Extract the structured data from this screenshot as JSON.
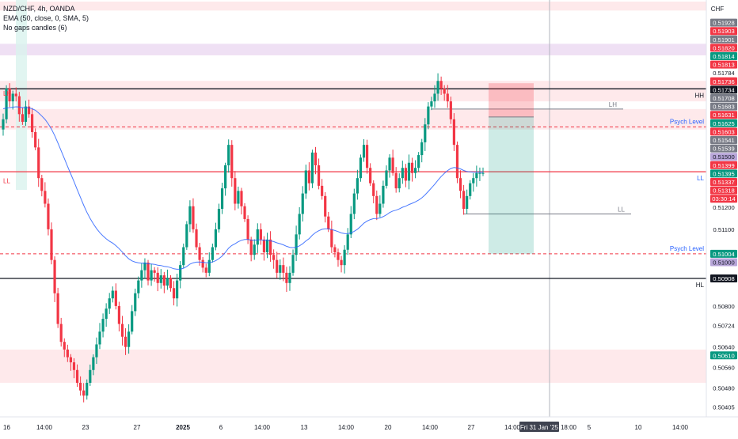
{
  "header": {
    "symbol_line": "NZD/CHF, 4h, OANDA",
    "ema_line": "EMA (50, close, 0, SMA, 5)",
    "gaps_line": "No gaps candles (6)"
  },
  "chart_data": {
    "type": "candlestick",
    "currency_label": "CHF",
    "y_range": [
      0.5037,
      0.5199
    ],
    "x_range": [
      0,
      932
    ],
    "price_ticks": [
      "0.51928",
      "0.51903",
      "0.51901",
      "0.51820",
      "0.51814",
      "0.51813",
      "0.51784",
      "0.51736",
      "0.51734",
      "0.51708",
      "0.51683",
      "0.51631",
      "0.51625",
      "0.51603",
      "0.51541",
      "0.51539",
      "0.51500",
      "0.51399",
      "0.51395",
      "0.51337",
      "0.51318",
      "03:30:14",
      "0.51200",
      "0.51100",
      "0.51004",
      "0.51000",
      "0.50908",
      "0.50800",
      "0.50724",
      "0.50640",
      "0.50610",
      "0.50560",
      "0.50480",
      "0.50405"
    ],
    "price_tick_values": [
      0.51928,
      0.51903,
      0.51901,
      0.5182,
      0.51814,
      0.51813,
      0.51784,
      0.51736,
      0.51734,
      0.51708,
      0.51683,
      0.51631,
      0.51625,
      0.51603,
      0.51541,
      0.51539,
      0.515,
      0.51399,
      0.51395,
      0.51337,
      0.51318,
      0.5129,
      0.512,
      0.511,
      0.51004,
      0.51,
      0.50908,
      0.508,
      0.50724,
      0.5064,
      0.5061,
      0.5056,
      0.5048,
      0.50405
    ],
    "price_tick_styles": [
      {
        "bg": "#787b86",
        "fg": "#ffffff"
      },
      {
        "bg": "#f23645",
        "fg": "#ffffff"
      },
      {
        "bg": "#787b86",
        "fg": "#ffffff"
      },
      {
        "bg": "#f23645",
        "fg": "#ffffff"
      },
      {
        "bg": "#089981",
        "fg": "#ffffff"
      },
      {
        "bg": "#f23645",
        "fg": "#ffffff"
      },
      {
        "bg": "#ffffff",
        "fg": "#131722"
      },
      {
        "bg": "#f23645",
        "fg": "#ffffff"
      },
      {
        "bg": "#131722",
        "fg": "#ffffff"
      },
      {
        "bg": "#787b86",
        "fg": "#ffffff"
      },
      {
        "bg": "#787b86",
        "fg": "#ffffff"
      },
      {
        "bg": "#f23645",
        "fg": "#ffffff"
      },
      {
        "bg": "#089981",
        "fg": "#ffffff"
      },
      {
        "bg": "#f23645",
        "fg": "#ffffff"
      },
      {
        "bg": "#787b86",
        "fg": "#ffffff"
      },
      {
        "bg": "#787b86",
        "fg": "#ffffff"
      },
      {
        "bg": "#b8a6d9",
        "fg": "#131722"
      },
      {
        "bg": "#f23645",
        "fg": "#ffffff"
      },
      {
        "bg": "#089981",
        "fg": "#ffffff"
      },
      {
        "bg": "#f23645",
        "fg": "#ffffff"
      },
      {
        "bg": "#f23645",
        "fg": "#ffffff"
      },
      {
        "bg": "#f23645",
        "fg": "#ffffff"
      },
      {
        "bg": "none",
        "fg": "#131722"
      },
      {
        "bg": "none",
        "fg": "#131722"
      },
      {
        "bg": "#089981",
        "fg": "#ffffff"
      },
      {
        "bg": "#b8a6d9",
        "fg": "#131722"
      },
      {
        "bg": "#131722",
        "fg": "#ffffff"
      },
      {
        "bg": "none",
        "fg": "#131722"
      },
      {
        "bg": "none",
        "fg": "#131722"
      },
      {
        "bg": "none",
        "fg": "#131722"
      },
      {
        "bg": "#089981",
        "fg": "#ffffff"
      },
      {
        "bg": "none",
        "fg": "#131722"
      },
      {
        "bg": "none",
        "fg": "#131722"
      },
      {
        "bg": "none",
        "fg": "#131722"
      }
    ],
    "x_ticks": [
      "16",
      "14:00",
      "23",
      "27",
      "2025",
      "6",
      "14:00",
      "13",
      "14:00",
      "20",
      "14:00",
      "27",
      "14:00",
      "18:00",
      "5",
      "10",
      "14:00"
    ],
    "x_tick_positions": [
      4,
      56,
      108,
      173,
      231,
      279,
      331,
      384,
      437,
      490,
      543,
      595,
      647,
      718,
      744,
      806,
      859
    ],
    "cursor_date_label": "Fri 31 Jan '25",
    "horizontal_levels": [
      {
        "label": "HH",
        "price": 0.51649,
        "color": "#131722",
        "style": "solid"
      },
      {
        "label": "HL",
        "price": 0.50908,
        "color": "#131722",
        "style": "solid"
      },
      {
        "label": "LL",
        "price": 0.51325,
        "color": "#f23645",
        "style": "solid"
      },
      {
        "label": "Psych Level",
        "price": 0.515,
        "color": "#f23645",
        "style": "dashed"
      },
      {
        "label": "Psych Level",
        "price": 0.51004,
        "color": "#f23645",
        "style": "dashed"
      }
    ],
    "left_labels": [
      {
        "label": "LH",
        "price": 0.51631
      },
      {
        "label": "LL",
        "price": 0.5129
      }
    ],
    "short_lines": [
      {
        "label": "LH",
        "price": 0.5157,
        "x_from": 545,
        "x_to": 787
      },
      {
        "label": "LL",
        "price": 0.5116,
        "x_from": 585,
        "x_to": 797
      }
    ],
    "zones": [
      {
        "type": "supply",
        "top": 0.5199,
        "bottom": 0.51955,
        "color": "#fde2e4"
      },
      {
        "type": "purple",
        "top": 0.51825,
        "bottom": 0.5178,
        "color": "#e9d5f0"
      },
      {
        "type": "supply",
        "top": 0.5168,
        "bottom": 0.516,
        "color": "#fde2e4"
      },
      {
        "type": "supply",
        "top": 0.5157,
        "bottom": 0.5149,
        "color": "#fde2e4"
      },
      {
        "type": "demand",
        "top": 0.5063,
        "bottom": 0.505,
        "color": "#fde2e4"
      }
    ],
    "position": {
      "entry": 0.51539,
      "stop": 0.51603,
      "target": 0.51004
    },
    "ema_period": 50,
    "candles": {
      "count": 150,
      "closes": [
        0.5153,
        0.5165,
        0.516,
        0.5163,
        0.5162,
        0.5155,
        0.5152,
        0.5158,
        0.5155,
        0.5148,
        0.5142,
        0.513,
        0.5125,
        0.512,
        0.511,
        0.5098,
        0.5085,
        0.5073,
        0.5066,
        0.5063,
        0.506,
        0.5058,
        0.5055,
        0.505,
        0.5047,
        0.5045,
        0.505,
        0.5055,
        0.506,
        0.5065,
        0.507,
        0.5075,
        0.5079,
        0.5083,
        0.5086,
        0.508,
        0.5073,
        0.5068,
        0.5064,
        0.507,
        0.5078,
        0.5085,
        0.509,
        0.5094,
        0.5097,
        0.509,
        0.5094,
        0.5093,
        0.5089,
        0.5092,
        0.5088,
        0.5091,
        0.5087,
        0.5083,
        0.509,
        0.5096,
        0.5103,
        0.5112,
        0.5119,
        0.511,
        0.5103,
        0.5098,
        0.5095,
        0.5093,
        0.5098,
        0.5103,
        0.511,
        0.5118,
        0.5126,
        0.5135,
        0.5143,
        0.513,
        0.512,
        0.5125,
        0.5119,
        0.5114,
        0.5106,
        0.51,
        0.5104,
        0.511,
        0.5106,
        0.5101,
        0.5106,
        0.51,
        0.5098,
        0.5093,
        0.5096,
        0.5093,
        0.5089,
        0.5093,
        0.51,
        0.5108,
        0.5116,
        0.5124,
        0.5133,
        0.5128,
        0.514,
        0.5135,
        0.5127,
        0.5123,
        0.5115,
        0.511,
        0.5103,
        0.5101,
        0.5098,
        0.5096,
        0.5102,
        0.5108,
        0.5116,
        0.5124,
        0.513,
        0.5138,
        0.5143,
        0.5134,
        0.5128,
        0.5123,
        0.5116,
        0.512,
        0.5127,
        0.5133,
        0.5138,
        0.5132,
        0.5126,
        0.513,
        0.5134,
        0.5129,
        0.5136,
        0.5132,
        0.5134,
        0.5139,
        0.5144,
        0.5151,
        0.5158,
        0.516,
        0.5163,
        0.5168,
        0.5165,
        0.5163,
        0.516,
        0.5153,
        0.5143,
        0.513,
        0.5125,
        0.5118,
        0.5123,
        0.5128,
        0.513,
        0.5132,
        0.5132,
        0.5132
      ]
    }
  }
}
